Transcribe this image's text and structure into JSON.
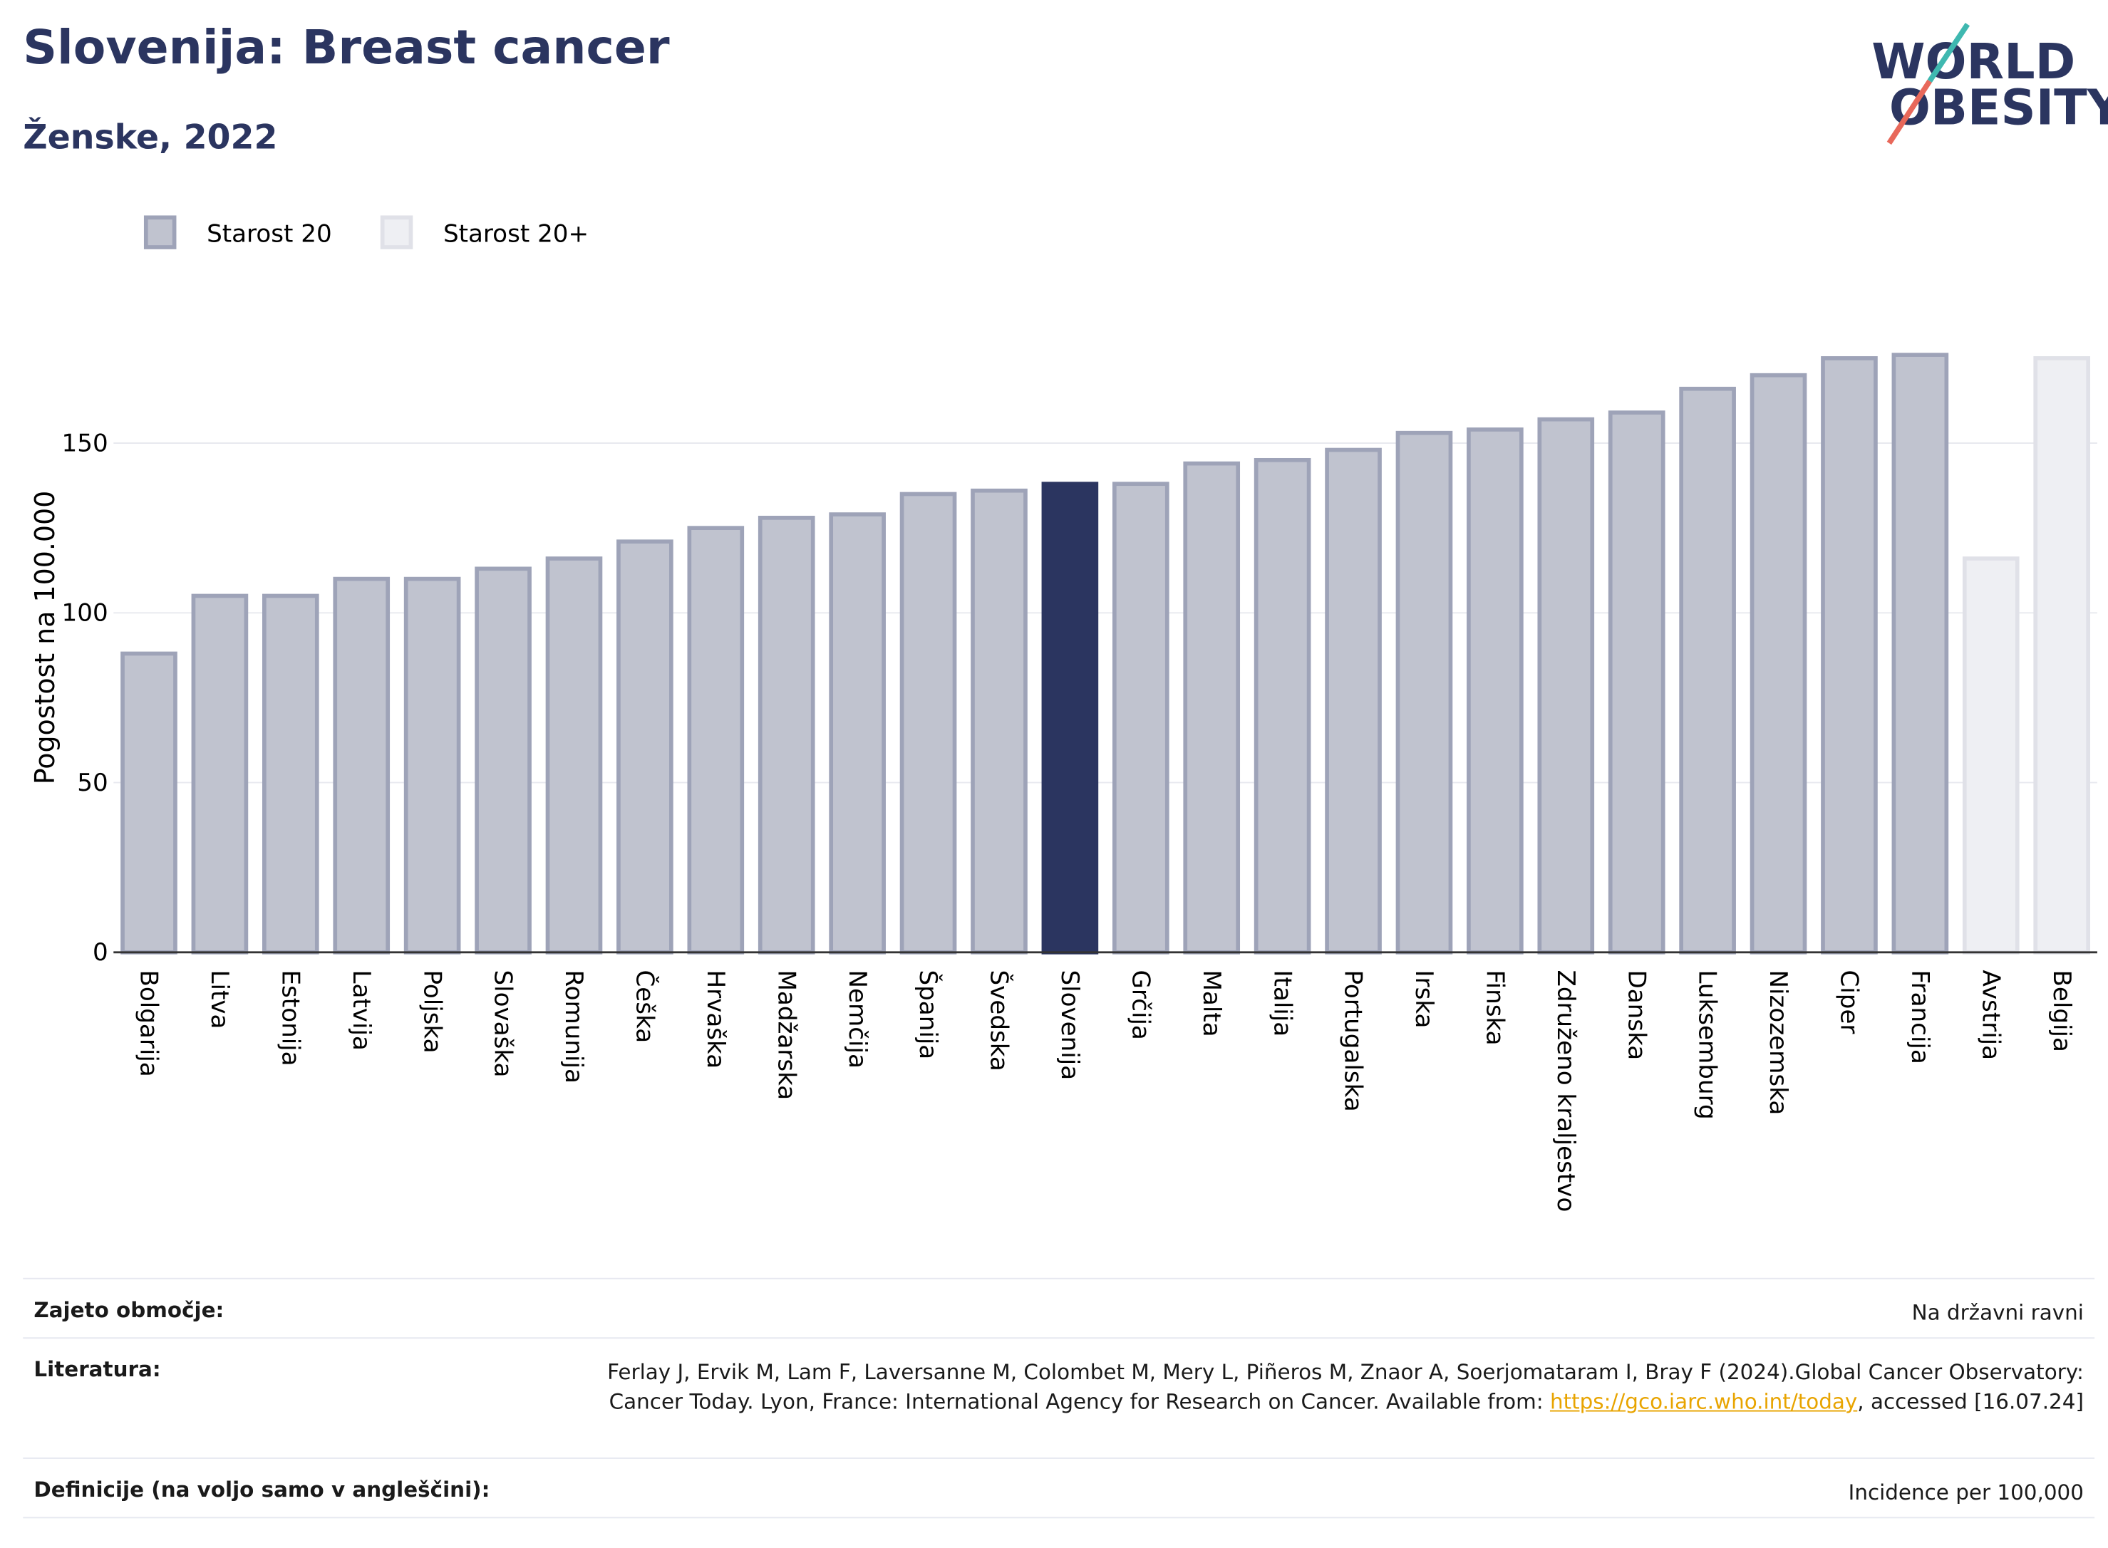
{
  "chart_data": {
    "type": "bar",
    "title": "Slovenija: Breast cancer",
    "subtitle": "Ženske, 2022",
    "y_label": "Pogostost na 100.000",
    "categories": [
      "Bolgarija",
      "Litva",
      "Estonija",
      "Latvija",
      "Poljska",
      "Slovaška",
      "Romunija",
      "Češka",
      "Hrvaška",
      "Madžarska",
      "Nemčija",
      "Španija",
      "Švedska",
      "Slovenija",
      "Grčija",
      "Malta",
      "Italija",
      "Portugalska",
      "Irska",
      "Finska",
      "Združeno kraljestvo",
      "Danska",
      "Luksemburg",
      "Nizozemska",
      "Ciper",
      "Francija",
      "Avstrija",
      "Belgija"
    ],
    "series": [
      {
        "name": "Starost 20",
        "color": "#c0c3cf",
        "stroke": "#9ea3b8",
        "colors": [
          "#c0c3cf",
          "#c0c3cf",
          "#c0c3cf",
          "#c0c3cf",
          "#c0c3cf",
          "#c0c3cf",
          "#c0c3cf",
          "#c0c3cf",
          "#c0c3cf",
          "#c0c3cf",
          "#c0c3cf",
          "#c0c3cf",
          "#c0c3cf",
          "#2b3560",
          "#c0c3cf",
          "#c0c3cf",
          "#c0c3cf",
          "#c0c3cf",
          "#c0c3cf",
          "#c0c3cf",
          "#c0c3cf",
          "#c0c3cf",
          "#c0c3cf",
          "#c0c3cf",
          "#c0c3cf",
          "#c0c3cf",
          null,
          null
        ],
        "values": [
          88,
          105,
          105,
          110,
          110,
          113,
          116,
          121,
          125,
          128,
          129,
          135,
          136,
          138,
          138,
          144,
          145,
          148,
          153,
          154,
          157,
          159,
          166,
          170,
          175,
          176,
          null,
          null
        ]
      },
      {
        "name": "Starost 20+",
        "color": "#eeeff3",
        "stroke": "#e0e1e8",
        "values": [
          null,
          null,
          null,
          null,
          null,
          null,
          null,
          null,
          null,
          null,
          null,
          null,
          null,
          null,
          null,
          null,
          null,
          null,
          null,
          null,
          null,
          null,
          null,
          null,
          null,
          null,
          116,
          175
        ]
      }
    ],
    "ylim": [
      0,
      190
    ],
    "yticks": [
      0,
      50,
      100,
      150
    ],
    "grid": true
  },
  "logo": {
    "line1": "WORLD",
    "line2": "OBESITY"
  },
  "footer": {
    "coverage": {
      "label": "Zajeto območje:",
      "value": "Na državni ravni"
    },
    "literature": {
      "label": "Literatura:",
      "text_before": "Ferlay J, Ervik M, Lam F, Laversanne M, Colombet M, Mery L, Piñeros M, Znaor A, Soerjomataram I, Bray F (2024).Global Cancer Observatory: Cancer Today. Lyon, France: International Agency for Research on Cancer. Available from: ",
      "link": "https://gco.iarc.who.int/today",
      "text_after": ", accessed [16.07.24]"
    },
    "definitions": {
      "label": "Definicije (na voljo samo v angleščini):",
      "value": "Incidence per 100,000"
    }
  }
}
